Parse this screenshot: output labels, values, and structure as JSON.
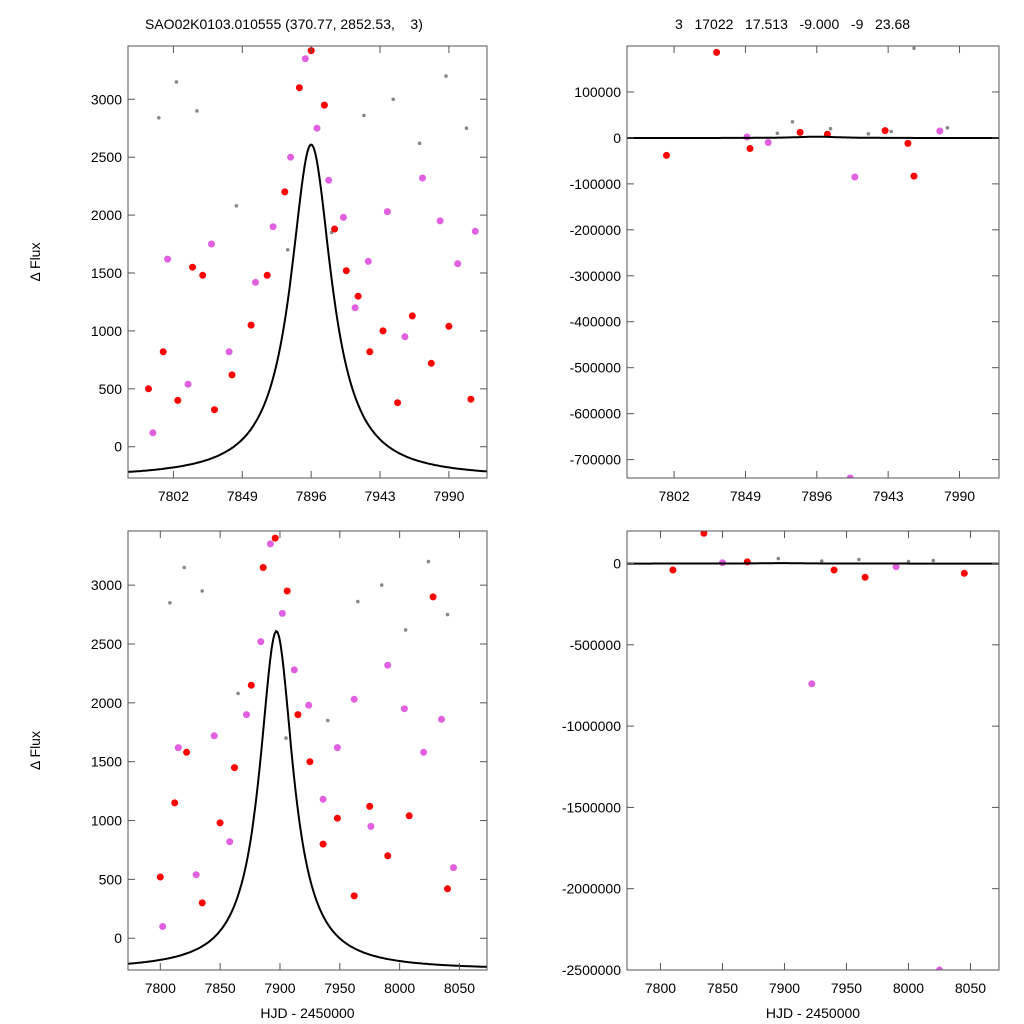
{
  "header": {
    "left_title": "SAO02K0103.010555 (370.77, 2852.53,    3)",
    "right_title": "3   17022   17.513   -9.000   -9   23.68"
  },
  "colors": {
    "series_a": "#ff0000",
    "series_b": "#e060e0",
    "background_points": "#888888",
    "model_curve": "#000000",
    "frame": "#555555"
  },
  "chart_data": [
    {
      "type": "scatter",
      "position": "top-left",
      "xlabel": "",
      "ylabel": "Δ Flux",
      "xlim": [
        7771,
        8016
      ],
      "ylim": [
        -270,
        3460
      ],
      "x_ticks": [
        7802,
        7849,
        7896,
        7943,
        7990
      ],
      "y_ticks": [
        0,
        500,
        1000,
        1500,
        2000,
        2500,
        3000
      ],
      "grid": false,
      "model": {
        "name": "",
        "peak_x": 7896,
        "peak_y": 2610,
        "baseline": -270,
        "width": 17
      },
      "series": [
        {
          "color": "red",
          "values": [
            [
              7785,
              500
            ],
            [
              7795,
              820
            ],
            [
              7805,
              400
            ],
            [
              7815,
              1550
            ],
            [
              7822,
              1480
            ],
            [
              7830,
              320
            ],
            [
              7842,
              620
            ],
            [
              7855,
              1050
            ],
            [
              7866,
              1480
            ],
            [
              7878,
              2200
            ],
            [
              7888,
              3100
            ],
            [
              7896,
              3420
            ],
            [
              7905,
              2950
            ],
            [
              7912,
              1880
            ],
            [
              7920,
              1520
            ],
            [
              7928,
              1300
            ],
            [
              7936,
              820
            ],
            [
              7945,
              1000
            ],
            [
              7955,
              380
            ],
            [
              7965,
              1130
            ],
            [
              7978,
              720
            ],
            [
              7990,
              1040
            ],
            [
              8005,
              410
            ]
          ]
        },
        {
          "color": "magenta",
          "values": [
            [
              7788,
              120
            ],
            [
              7798,
              1620
            ],
            [
              7812,
              540
            ],
            [
              7828,
              1750
            ],
            [
              7840,
              820
            ],
            [
              7858,
              1420
            ],
            [
              7870,
              1900
            ],
            [
              7882,
              2500
            ],
            [
              7892,
              3350
            ],
            [
              7900,
              2750
            ],
            [
              7908,
              2300
            ],
            [
              7918,
              1980
            ],
            [
              7926,
              1200
            ],
            [
              7935,
              1600
            ],
            [
              7948,
              2030
            ],
            [
              7960,
              950
            ],
            [
              7972,
              2320
            ],
            [
              7984,
              1950
            ],
            [
              7996,
              1580
            ],
            [
              8008,
              1860
            ]
          ]
        },
        {
          "color": "gray",
          "values": [
            [
              7792,
              2840
            ],
            [
              7804,
              3150
            ],
            [
              7818,
              2900
            ],
            [
              7845,
              2080
            ],
            [
              7880,
              1700
            ],
            [
              7910,
              1850
            ],
            [
              7932,
              2860
            ],
            [
              7952,
              3000
            ],
            [
              7970,
              2620
            ],
            [
              7988,
              3200
            ],
            [
              8002,
              2750
            ]
          ]
        }
      ]
    },
    {
      "type": "scatter",
      "position": "top-right",
      "xlabel": "",
      "ylabel": "",
      "xlim": [
        7771,
        8016
      ],
      "ylim": [
        -740000,
        200000
      ],
      "x_ticks": [
        7802,
        7849,
        7896,
        7943,
        7990
      ],
      "y_ticks": [
        100000,
        0,
        -100000,
        -200000,
        -300000,
        -400000,
        -500000,
        -600000,
        -700000
      ],
      "grid": false,
      "model": {
        "name": "",
        "peak_x": 7896,
        "peak_y": 2610,
        "baseline": -270,
        "width": 17
      },
      "series": [
        {
          "color": "red",
          "values": [
            [
              7830,
              186000
            ],
            [
              7797,
              -38000
            ],
            [
              7852,
              -23000
            ],
            [
              7956,
              -12000
            ],
            [
              7960,
              -83000
            ],
            [
              7941,
              16000
            ],
            [
              7885,
              12000
            ],
            [
              7903,
              8000
            ]
          ]
        },
        {
          "color": "magenta",
          "values": [
            [
              7918,
              -740000
            ],
            [
              7921,
              -85000
            ],
            [
              7864,
              -10000
            ],
            [
              7977,
              15000
            ],
            [
              7850,
              2000
            ]
          ]
        },
        {
          "color": "gray",
          "values": [
            [
              7960,
              195000
            ],
            [
              7880,
              35000
            ],
            [
              7905,
              20000
            ],
            [
              7945,
              14000
            ],
            [
              7982,
              22000
            ],
            [
              7930,
              9000
            ],
            [
              7870,
              10000
            ]
          ]
        }
      ]
    },
    {
      "type": "scatter",
      "position": "bottom-left",
      "xlabel": "HJD - 2450000",
      "ylabel": "Δ Flux",
      "xlim": [
        7773,
        8073
      ],
      "ylim": [
        -270,
        3460
      ],
      "x_ticks": [
        7800,
        7850,
        7900,
        7950,
        8000,
        8050
      ],
      "y_ticks": [
        0,
        500,
        1000,
        1500,
        2000,
        2500,
        3000
      ],
      "grid": false,
      "model": {
        "name": "",
        "peak_x": 7897,
        "peak_y": 2610,
        "baseline": -270,
        "width": 17
      },
      "series": [
        {
          "color": "red",
          "values": [
            [
              7800,
              520
            ],
            [
              7812,
              1150
            ],
            [
              7822,
              1580
            ],
            [
              7835,
              300
            ],
            [
              7850,
              980
            ],
            [
              7862,
              1450
            ],
            [
              7876,
              2150
            ],
            [
              7886,
              3150
            ],
            [
              7896,
              3400
            ],
            [
              7906,
              2950
            ],
            [
              7915,
              1900
            ],
            [
              7925,
              1500
            ],
            [
              7936,
              800
            ],
            [
              7948,
              1020
            ],
            [
              7962,
              360
            ],
            [
              7975,
              1120
            ],
            [
              7990,
              700
            ],
            [
              8008,
              1040
            ],
            [
              8028,
              2900
            ],
            [
              8040,
              420
            ]
          ]
        },
        {
          "color": "magenta",
          "values": [
            [
              7802,
              100
            ],
            [
              7815,
              1620
            ],
            [
              7830,
              540
            ],
            [
              7845,
              1720
            ],
            [
              7858,
              820
            ],
            [
              7872,
              1900
            ],
            [
              7884,
              2520
            ],
            [
              7892,
              3350
            ],
            [
              7902,
              2760
            ],
            [
              7912,
              2280
            ],
            [
              7924,
              1980
            ],
            [
              7936,
              1180
            ],
            [
              7948,
              1620
            ],
            [
              7962,
              2030
            ],
            [
              7976,
              950
            ],
            [
              7990,
              2320
            ],
            [
              8004,
              1950
            ],
            [
              8020,
              1580
            ],
            [
              8035,
              1860
            ],
            [
              8045,
              600
            ]
          ]
        },
        {
          "color": "gray",
          "values": [
            [
              7808,
              2850
            ],
            [
              7820,
              3150
            ],
            [
              7835,
              2950
            ],
            [
              7865,
              2080
            ],
            [
              7905,
              1700
            ],
            [
              7940,
              1850
            ],
            [
              7965,
              2860
            ],
            [
              7985,
              3000
            ],
            [
              8005,
              2620
            ],
            [
              8024,
              3200
            ],
            [
              8040,
              2750
            ]
          ]
        }
      ]
    },
    {
      "type": "scatter",
      "position": "bottom-right",
      "xlabel": "HJD - 2450000",
      "ylabel": "",
      "xlim": [
        7773,
        8073
      ],
      "ylim": [
        -2500000,
        200000
      ],
      "x_ticks": [
        7800,
        7850,
        7900,
        7950,
        8000,
        8050
      ],
      "y_ticks": [
        0,
        -500000,
        -1000000,
        -1500000,
        -2000000,
        -2500000
      ],
      "grid": false,
      "model": {
        "name": "",
        "peak_x": 7897,
        "peak_y": 2610,
        "baseline": -270,
        "width": 17
      },
      "series": [
        {
          "color": "red",
          "values": [
            [
              7835,
              186000
            ],
            [
              7810,
              -40000
            ],
            [
              7965,
              -85000
            ],
            [
              8045,
              -60000
            ],
            [
              7940,
              -40000
            ],
            [
              7870,
              10000
            ]
          ]
        },
        {
          "color": "magenta",
          "values": [
            [
              7922,
              -740000
            ],
            [
              8025,
              -2500000
            ],
            [
              7990,
              -20000
            ],
            [
              7850,
              5000
            ]
          ]
        },
        {
          "color": "gray",
          "values": [
            [
              7895,
              30000
            ],
            [
              7960,
              25000
            ],
            [
              8000,
              12000
            ],
            [
              7930,
              15000
            ],
            [
              7870,
              20000
            ],
            [
              8020,
              18000
            ]
          ]
        }
      ]
    }
  ]
}
